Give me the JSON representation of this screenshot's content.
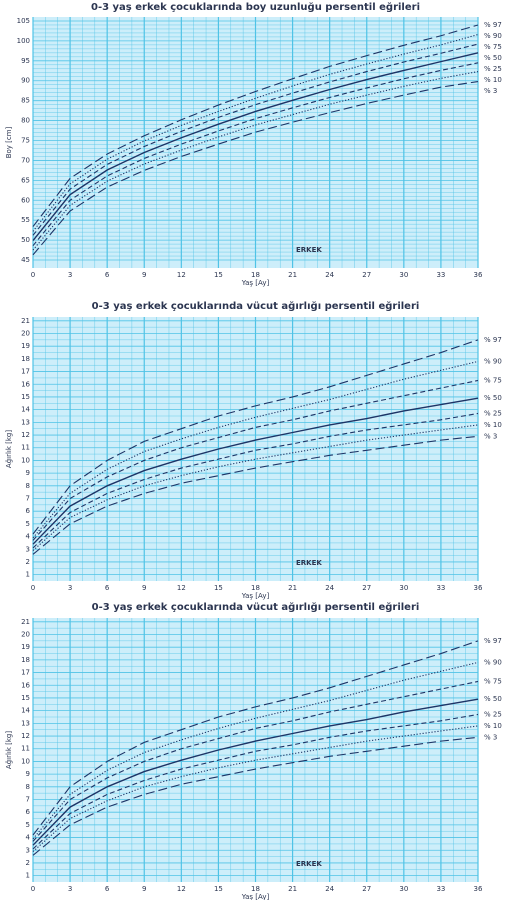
{
  "chart_data": [
    {
      "type": "line",
      "title": "0-3 yaş erkek çocuklarında boy uzunluğu persentil eğrileri",
      "x_label": "Yaş [Ay]",
      "y_label": "Boy [cm]",
      "annotation": "ERKEK",
      "x": [
        0,
        3,
        6,
        9,
        12,
        15,
        18,
        21,
        24,
        27,
        30,
        33,
        36
      ],
      "xlim": [
        0,
        36
      ],
      "xticks": [
        0,
        3,
        6,
        9,
        12,
        15,
        18,
        21,
        24,
        27,
        30,
        33,
        36
      ],
      "ylim": [
        43,
        106
      ],
      "yticks": [
        45,
        50,
        55,
        60,
        65,
        70,
        75,
        80,
        85,
        90,
        95,
        100,
        105
      ],
      "grid": true,
      "background": "#cdeefa",
      "grid_color": "#4fc3e6",
      "series": [
        {
          "name": "% 97",
          "color": "#1d3466",
          "linestyle": "longdash",
          "values": [
            53.4,
            65.5,
            71.6,
            76.2,
            80.2,
            83.9,
            87.3,
            90.5,
            93.6,
            96.3,
            98.9,
            101.3,
            104.0
          ]
        },
        {
          "name": "% 90",
          "color": "#1d3466",
          "linestyle": "dotted",
          "values": [
            52.2,
            64.1,
            70.3,
            74.9,
            78.8,
            82.3,
            85.6,
            88.7,
            91.6,
            94.2,
            96.7,
            99.0,
            101.6
          ]
        },
        {
          "name": "% 75",
          "color": "#1d3466",
          "linestyle": "dashed",
          "values": [
            51.2,
            62.8,
            69.0,
            73.5,
            77.3,
            80.8,
            84.0,
            86.9,
            89.7,
            92.3,
            94.7,
            96.9,
            99.2
          ]
        },
        {
          "name": "% 50",
          "color": "#1d3466",
          "linestyle": "solid",
          "values": [
            49.9,
            61.4,
            67.6,
            72.0,
            75.7,
            79.1,
            82.3,
            85.1,
            87.8,
            90.3,
            92.6,
            94.8,
            97.0
          ]
        },
        {
          "name": "% 25",
          "color": "#1d3466",
          "linestyle": "dashed",
          "values": [
            48.6,
            60.0,
            66.1,
            70.5,
            74.1,
            77.4,
            80.5,
            83.2,
            85.8,
            88.2,
            90.5,
            92.6,
            94.5
          ]
        },
        {
          "name": "% 10",
          "color": "#1d3466",
          "linestyle": "dotted",
          "values": [
            47.5,
            58.7,
            64.8,
            69.1,
            72.6,
            75.9,
            78.9,
            81.5,
            84.1,
            86.4,
            88.6,
            90.6,
            92.3
          ]
        },
        {
          "name": "% 3",
          "color": "#1d3466",
          "linestyle": "longdash",
          "values": [
            46.3,
            57.3,
            63.3,
            67.5,
            71.0,
            74.1,
            77.1,
            79.6,
            82.0,
            84.3,
            86.4,
            88.4,
            89.8
          ]
        }
      ]
    },
    {
      "type": "line",
      "title": "0-3 yaş erkek çocuklarında vücut ağırlığı persentil eğrileri",
      "x_label": "Yaş [Ay]",
      "y_label": "Ağırlık [kg]",
      "annotation": "ERKEK",
      "x": [
        0,
        3,
        6,
        9,
        12,
        15,
        18,
        21,
        24,
        27,
        30,
        33,
        36
      ],
      "xlim": [
        0,
        36
      ],
      "xticks": [
        0,
        3,
        6,
        9,
        12,
        15,
        18,
        21,
        24,
        27,
        30,
        33,
        36
      ],
      "ylim": [
        0.5,
        21.3
      ],
      "yticks": [
        1,
        2,
        3,
        4,
        5,
        6,
        7,
        8,
        9,
        10,
        11,
        12,
        13,
        14,
        15,
        16,
        17,
        18,
        19,
        20,
        21
      ],
      "grid": true,
      "background": "#cdeefa",
      "grid_color": "#4fc3e6",
      "series": [
        {
          "name": "% 97",
          "color": "#1d3466",
          "linestyle": "longdash",
          "values": [
            4.2,
            8.0,
            10.0,
            11.5,
            12.5,
            13.5,
            14.3,
            15.0,
            15.8,
            16.7,
            17.6,
            18.5,
            19.5
          ]
        },
        {
          "name": "% 90",
          "color": "#1d3466",
          "linestyle": "dotted",
          "values": [
            3.9,
            7.4,
            9.3,
            10.7,
            11.7,
            12.6,
            13.4,
            14.1,
            14.8,
            15.6,
            16.4,
            17.1,
            17.8
          ]
        },
        {
          "name": "% 75",
          "color": "#1d3466",
          "linestyle": "dashed",
          "values": [
            3.7,
            7.0,
            8.7,
            10.0,
            11.0,
            11.8,
            12.6,
            13.2,
            13.9,
            14.5,
            15.1,
            15.7,
            16.3
          ]
        },
        {
          "name": "% 50",
          "color": "#1d3466",
          "linestyle": "solid",
          "values": [
            3.4,
            6.4,
            8.0,
            9.2,
            10.1,
            10.9,
            11.6,
            12.2,
            12.8,
            13.3,
            13.9,
            14.4,
            14.9
          ]
        },
        {
          "name": "% 25",
          "color": "#1d3466",
          "linestyle": "dashed",
          "values": [
            3.1,
            5.9,
            7.4,
            8.5,
            9.4,
            10.1,
            10.8,
            11.3,
            11.9,
            12.4,
            12.8,
            13.2,
            13.7
          ]
        },
        {
          "name": "% 10",
          "color": "#1d3466",
          "linestyle": "dotted",
          "values": [
            2.9,
            5.5,
            6.9,
            8.0,
            8.8,
            9.5,
            10.1,
            10.6,
            11.1,
            11.6,
            12.0,
            12.4,
            12.8
          ]
        },
        {
          "name": "% 3",
          "color": "#1d3466",
          "linestyle": "longdash",
          "values": [
            2.6,
            5.0,
            6.4,
            7.4,
            8.2,
            8.8,
            9.4,
            9.9,
            10.4,
            10.8,
            11.2,
            11.6,
            11.9
          ]
        }
      ]
    },
    {
      "type": "line",
      "title": "0-3 yaş erkek çocuklarında vücut ağırlığı persentil eğrileri",
      "x_label": "Yaş [Ay]",
      "y_label": "Ağırlık [kg]",
      "annotation": "ERKEK",
      "x": [
        0,
        3,
        6,
        9,
        12,
        15,
        18,
        21,
        24,
        27,
        30,
        33,
        36
      ],
      "xlim": [
        0,
        36
      ],
      "xticks": [
        0,
        3,
        6,
        9,
        12,
        15,
        18,
        21,
        24,
        27,
        30,
        33,
        36
      ],
      "ylim": [
        0.5,
        21.3
      ],
      "yticks": [
        1,
        2,
        3,
        4,
        5,
        6,
        7,
        8,
        9,
        10,
        11,
        12,
        13,
        14,
        15,
        16,
        17,
        18,
        19,
        20,
        21
      ],
      "grid": true,
      "background": "#cdeefa",
      "grid_color": "#4fc3e6",
      "series": [
        {
          "name": "% 97",
          "color": "#1d3466",
          "linestyle": "longdash",
          "values": [
            4.2,
            8.0,
            10.0,
            11.5,
            12.5,
            13.5,
            14.3,
            15.0,
            15.8,
            16.7,
            17.6,
            18.5,
            19.5
          ]
        },
        {
          "name": "% 90",
          "color": "#1d3466",
          "linestyle": "dotted",
          "values": [
            3.9,
            7.4,
            9.3,
            10.7,
            11.7,
            12.6,
            13.4,
            14.1,
            14.8,
            15.6,
            16.4,
            17.1,
            17.8
          ]
        },
        {
          "name": "% 75",
          "color": "#1d3466",
          "linestyle": "dashed",
          "values": [
            3.7,
            7.0,
            8.7,
            10.0,
            11.0,
            11.8,
            12.6,
            13.2,
            13.9,
            14.5,
            15.1,
            15.7,
            16.3
          ]
        },
        {
          "name": "% 50",
          "color": "#1d3466",
          "linestyle": "solid",
          "values": [
            3.4,
            6.4,
            8.0,
            9.2,
            10.1,
            10.9,
            11.6,
            12.2,
            12.8,
            13.3,
            13.9,
            14.4,
            14.9
          ]
        },
        {
          "name": "% 25",
          "color": "#1d3466",
          "linestyle": "dashed",
          "values": [
            3.1,
            5.9,
            7.4,
            8.5,
            9.4,
            10.1,
            10.8,
            11.3,
            11.9,
            12.4,
            12.8,
            13.2,
            13.7
          ]
        },
        {
          "name": "% 10",
          "color": "#1d3466",
          "linestyle": "dotted",
          "values": [
            2.9,
            5.5,
            6.9,
            8.0,
            8.8,
            9.5,
            10.1,
            10.6,
            11.1,
            11.6,
            12.0,
            12.4,
            12.8
          ]
        },
        {
          "name": "% 3",
          "color": "#1d3466",
          "linestyle": "longdash",
          "values": [
            2.6,
            5.0,
            6.4,
            7.4,
            8.2,
            8.8,
            9.4,
            9.9,
            10.4,
            10.8,
            11.2,
            11.6,
            11.9
          ]
        }
      ]
    }
  ]
}
